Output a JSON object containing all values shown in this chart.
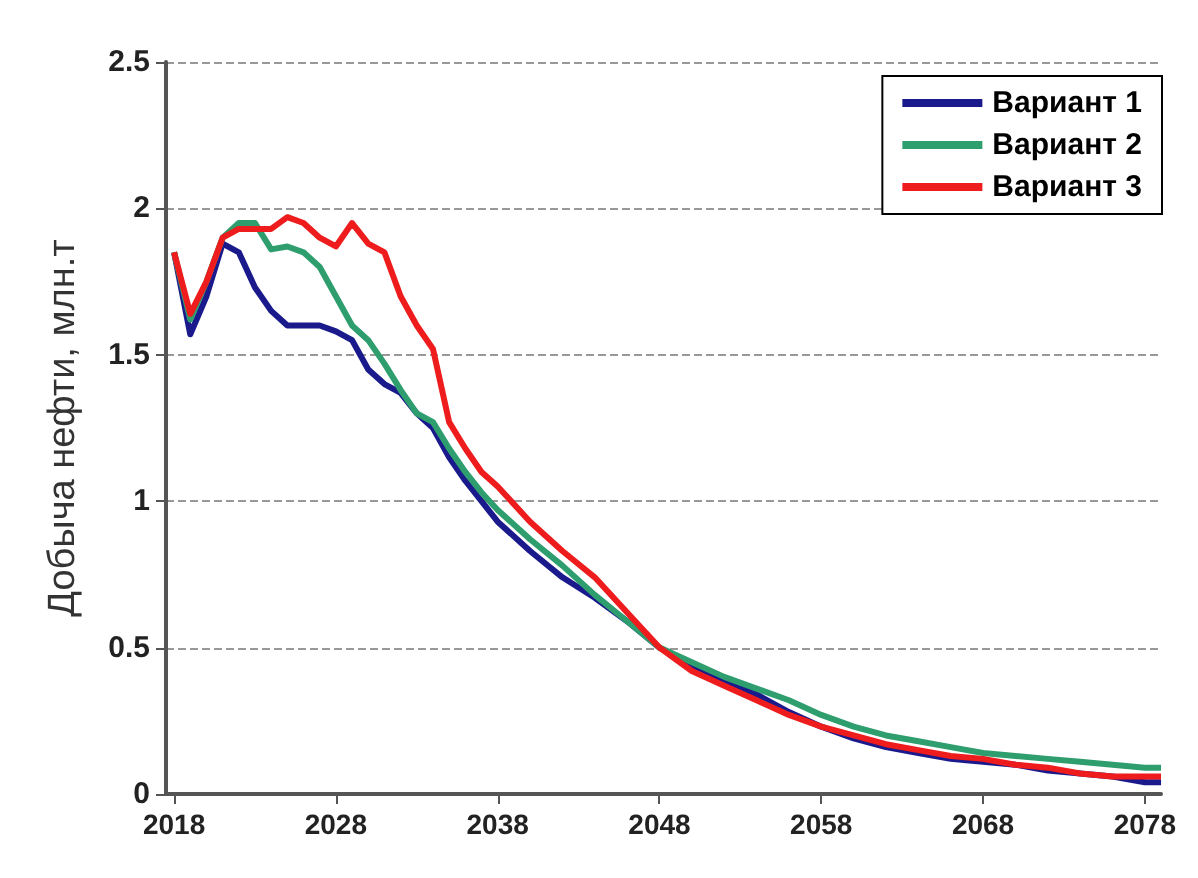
{
  "chart_data": {
    "type": "line",
    "ylabel": "Добыча нефти, млн.т",
    "x": [
      2018,
      2019,
      2020,
      2021,
      2022,
      2023,
      2024,
      2025,
      2026,
      2027,
      2028,
      2029,
      2030,
      2031,
      2032,
      2033,
      2034,
      2035,
      2036,
      2037,
      2038,
      2040,
      2042,
      2044,
      2046,
      2048,
      2050,
      2052,
      2054,
      2056,
      2058,
      2060,
      2062,
      2064,
      2066,
      2068,
      2070,
      2072,
      2074,
      2076,
      2078,
      2079
    ],
    "series": [
      {
        "name": "Вариант 1",
        "color": "#1a1a8c",
        "values": [
          1.85,
          1.57,
          1.7,
          1.88,
          1.85,
          1.73,
          1.65,
          1.6,
          1.6,
          1.6,
          1.58,
          1.55,
          1.45,
          1.4,
          1.37,
          1.3,
          1.25,
          1.15,
          1.07,
          1.0,
          0.93,
          0.83,
          0.74,
          0.67,
          0.59,
          0.5,
          0.44,
          0.39,
          0.34,
          0.28,
          0.23,
          0.19,
          0.16,
          0.14,
          0.12,
          0.11,
          0.1,
          0.08,
          0.07,
          0.06,
          0.04,
          0.04
        ]
      },
      {
        "name": "Вариант 2",
        "color": "#2e9e6e",
        "values": [
          1.85,
          1.62,
          1.75,
          1.9,
          1.95,
          1.95,
          1.86,
          1.87,
          1.85,
          1.8,
          1.7,
          1.6,
          1.55,
          1.47,
          1.38,
          1.3,
          1.27,
          1.18,
          1.1,
          1.03,
          0.97,
          0.87,
          0.78,
          0.68,
          0.59,
          0.5,
          0.45,
          0.4,
          0.36,
          0.32,
          0.27,
          0.23,
          0.2,
          0.18,
          0.16,
          0.14,
          0.13,
          0.12,
          0.11,
          0.1,
          0.09,
          0.09
        ]
      },
      {
        "name": "Вариант 3",
        "color": "#ee1c1c",
        "values": [
          1.85,
          1.64,
          1.75,
          1.9,
          1.93,
          1.93,
          1.93,
          1.97,
          1.95,
          1.9,
          1.87,
          1.95,
          1.88,
          1.85,
          1.7,
          1.6,
          1.52,
          1.27,
          1.18,
          1.1,
          1.05,
          0.93,
          0.83,
          0.74,
          0.62,
          0.5,
          0.42,
          0.37,
          0.32,
          0.27,
          0.23,
          0.2,
          0.17,
          0.15,
          0.13,
          0.12,
          0.1,
          0.09,
          0.07,
          0.06,
          0.06,
          0.06
        ]
      }
    ],
    "xlim": [
      2017.5,
      2079
    ],
    "xticks": [
      2018,
      2028,
      2038,
      2048,
      2058,
      2068,
      2078
    ],
    "ylim": [
      0,
      2.5
    ],
    "yticks": [
      0,
      0.5,
      1,
      1.5,
      2,
      2.5
    ],
    "grid": "y",
    "legend": "top right",
    "marker": "none",
    "line_style": "solid"
  }
}
